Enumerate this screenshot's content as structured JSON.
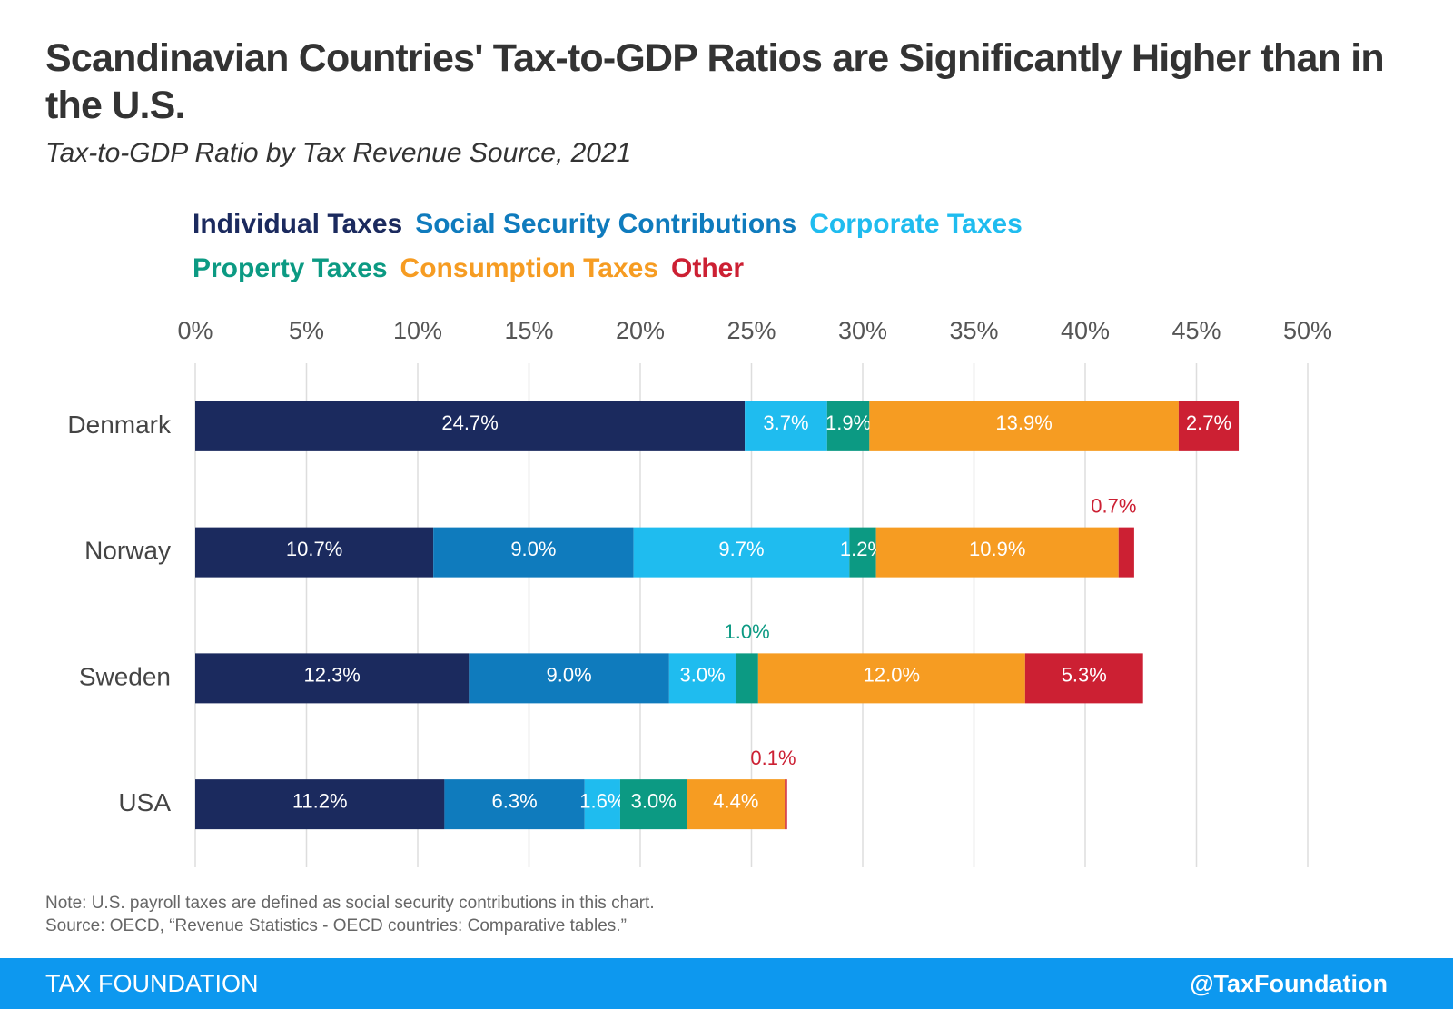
{
  "chart_data": {
    "type": "stacked-bar",
    "orientation": "horizontal",
    "title": "Scandinavian Countries' Tax-to-GDP Ratios are Significantly Higher than in the U.S.",
    "subtitle": "Tax-to-GDP Ratio by Tax Revenue Source, 2021",
    "categories": [
      "Denmark",
      "Norway",
      "Sweden",
      "USA"
    ],
    "series": [
      {
        "name": "Individual Taxes",
        "color": "#1b2a5e",
        "values": [
          24.7,
          10.7,
          12.3,
          11.2
        ],
        "value_labels": [
          "24.7%",
          "10.7%",
          "12.3%",
          "11.2%"
        ]
      },
      {
        "name": "Social Security Contributions",
        "color": "#0f7bbd",
        "values": [
          null,
          9.0,
          9.0,
          6.3
        ],
        "value_labels": [
          null,
          "9.0%",
          "9.0%",
          "6.3%"
        ]
      },
      {
        "name": "Corporate Taxes",
        "color": "#1fbcef",
        "values": [
          3.7,
          9.7,
          3.0,
          1.6
        ],
        "value_labels": [
          "3.7%",
          "9.7%",
          "3.0%",
          "1.6%"
        ]
      },
      {
        "name": "Property Taxes",
        "color": "#0c9a83",
        "values": [
          1.9,
          1.2,
          1.0,
          3.0
        ],
        "value_labels": [
          "1.9%",
          "1.2%",
          "1.0%",
          "3.0%"
        ]
      },
      {
        "name": "Consumption Taxes",
        "color": "#f69c22",
        "values": [
          13.9,
          10.9,
          12.0,
          4.4
        ],
        "value_labels": [
          "13.9%",
          "10.9%",
          "12.0%",
          "4.4%"
        ]
      },
      {
        "name": "Other",
        "color": "#cc2033",
        "values": [
          2.7,
          0.7,
          5.3,
          0.1
        ],
        "value_labels": [
          "2.7%",
          "0.7%",
          "5.3%",
          "0.1%"
        ]
      }
    ],
    "xlim": [
      0,
      50
    ],
    "xticks": [
      {
        "value": 0,
        "label": "0%"
      },
      {
        "value": 5,
        "label": "5%"
      },
      {
        "value": 10,
        "label": "10%"
      },
      {
        "value": 15,
        "label": "15%"
      },
      {
        "value": 20,
        "label": "20%"
      },
      {
        "value": 25,
        "label": "25%"
      },
      {
        "value": 30,
        "label": "30%"
      },
      {
        "value": 35,
        "label": "35%"
      },
      {
        "value": 40,
        "label": "40%"
      },
      {
        "value": 45,
        "label": "45%"
      },
      {
        "value": 50,
        "label": "50%"
      }
    ],
    "grid": true,
    "notes": [
      "Note: U.S. payroll taxes are defined as social security contributions in this chart.",
      "Source: OECD, “Revenue Statistics - OECD countries: Comparative tables.”"
    ],
    "footer": {
      "left": "TAX FOUNDATION",
      "right": "@TaxFoundation"
    }
  }
}
